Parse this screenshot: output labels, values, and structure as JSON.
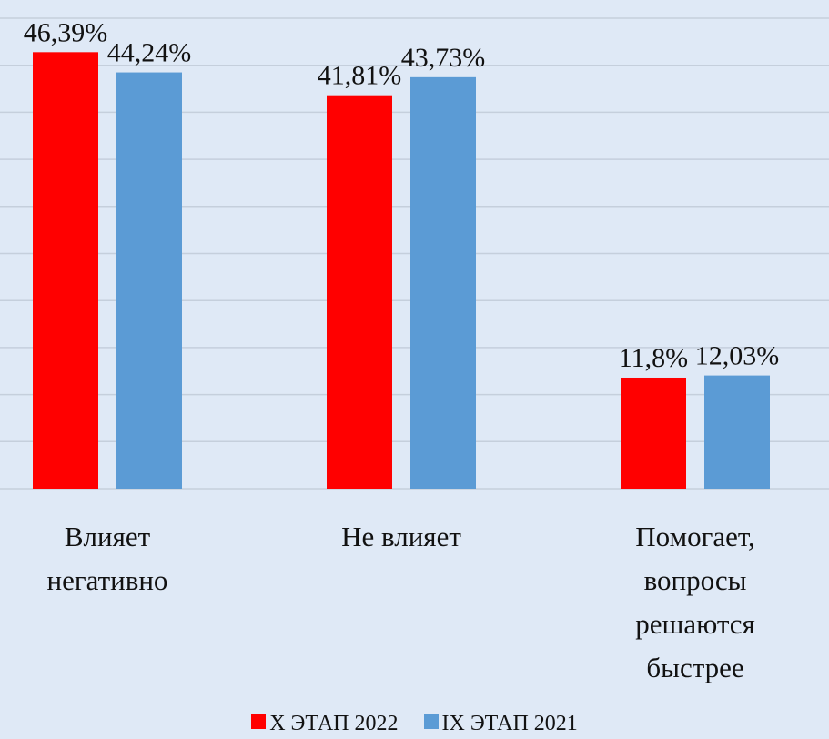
{
  "chart_data": {
    "type": "bar",
    "categories": [
      "Влияет негативно",
      "Не влияет",
      "Помогает, вопросы решаются быстрее"
    ],
    "series": [
      {
        "name": "X ЭТАП 2022",
        "color": "#ff0000",
        "values": [
          46.39,
          41.81,
          11.8
        ],
        "value_labels": [
          "46,39%",
          "41,81%",
          "11,8%"
        ]
      },
      {
        "name": "IX ЭТАП 2021",
        "color": "#5b9bd5",
        "values": [
          44.24,
          43.73,
          12.03
        ],
        "value_labels": [
          "44,24%",
          "43,73%",
          "12,03%"
        ]
      }
    ],
    "ylim": [
      0,
      50
    ],
    "yticks": [
      0,
      5,
      10,
      15,
      20,
      25,
      30,
      35,
      40,
      45,
      50
    ],
    "grid": true,
    "legend": "bottom"
  }
}
